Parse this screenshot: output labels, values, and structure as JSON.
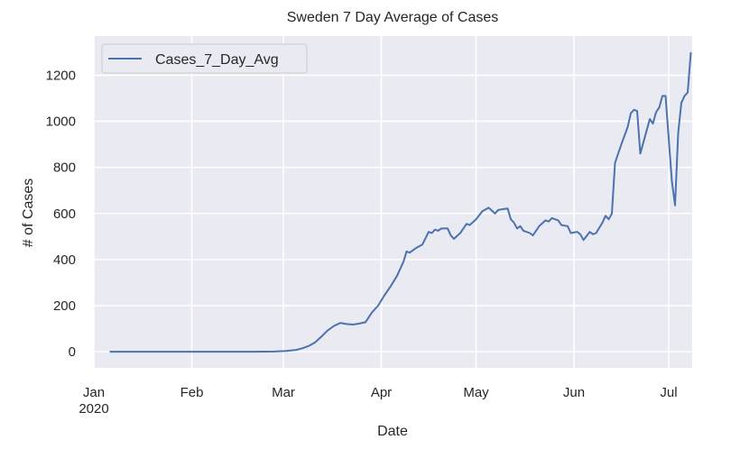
{
  "chart_data": {
    "type": "line",
    "title": "Sweden 7 Day Average of Cases",
    "xlabel": "Date",
    "ylabel": "# of Cases",
    "x_range": [
      "2020-01-01",
      "2020-07-08"
    ],
    "ylim": [
      -70,
      1370
    ],
    "grid": true,
    "legend_placement": "top-left",
    "x_ticks": [
      {
        "date": "2020-01-01",
        "label": "Jan",
        "sublabel": "2020"
      },
      {
        "date": "2020-02-01",
        "label": "Feb",
        "sublabel": ""
      },
      {
        "date": "2020-03-01",
        "label": "Mar",
        "sublabel": ""
      },
      {
        "date": "2020-04-01",
        "label": "Apr",
        "sublabel": ""
      },
      {
        "date": "2020-05-01",
        "label": "May",
        "sublabel": ""
      },
      {
        "date": "2020-06-01",
        "label": "Jun",
        "sublabel": ""
      },
      {
        "date": "2020-07-01",
        "label": "Jul",
        "sublabel": ""
      }
    ],
    "y_ticks": [
      {
        "value": 0,
        "label": "0"
      },
      {
        "value": 200,
        "label": "200"
      },
      {
        "value": 400,
        "label": "400"
      },
      {
        "value": 600,
        "label": "600"
      },
      {
        "value": 800,
        "label": "800"
      },
      {
        "value": 1000,
        "label": "1000"
      },
      {
        "value": 1200,
        "label": "1200"
      }
    ],
    "series": [
      {
        "name": "Cases_7_Day_Avg",
        "color": "#4c72b0",
        "points": [
          [
            "2020-01-06",
            0
          ],
          [
            "2020-01-20",
            0
          ],
          [
            "2020-02-05",
            0
          ],
          [
            "2020-02-20",
            0
          ],
          [
            "2020-02-27",
            1
          ],
          [
            "2020-03-02",
            3
          ],
          [
            "2020-03-05",
            8
          ],
          [
            "2020-03-07",
            15
          ],
          [
            "2020-03-09",
            25
          ],
          [
            "2020-03-11",
            40
          ],
          [
            "2020-03-13",
            65
          ],
          [
            "2020-03-15",
            92
          ],
          [
            "2020-03-17",
            112
          ],
          [
            "2020-03-19",
            125
          ],
          [
            "2020-03-21",
            120
          ],
          [
            "2020-03-23",
            118
          ],
          [
            "2020-03-25",
            122
          ],
          [
            "2020-03-27",
            128
          ],
          [
            "2020-03-29",
            170
          ],
          [
            "2020-03-31",
            200
          ],
          [
            "2020-04-02",
            245
          ],
          [
            "2020-04-04",
            285
          ],
          [
            "2020-04-06",
            330
          ],
          [
            "2020-04-08",
            390
          ],
          [
            "2020-04-09",
            435
          ],
          [
            "2020-04-10",
            430
          ],
          [
            "2020-04-12",
            450
          ],
          [
            "2020-04-14",
            465
          ],
          [
            "2020-04-16",
            520
          ],
          [
            "2020-04-17",
            515
          ],
          [
            "2020-04-18",
            530
          ],
          [
            "2020-04-19",
            525
          ],
          [
            "2020-04-20",
            535
          ],
          [
            "2020-04-22",
            535
          ],
          [
            "2020-04-23",
            505
          ],
          [
            "2020-04-24",
            490
          ],
          [
            "2020-04-26",
            515
          ],
          [
            "2020-04-28",
            555
          ],
          [
            "2020-04-29",
            550
          ],
          [
            "2020-05-01",
            575
          ],
          [
            "2020-05-03",
            610
          ],
          [
            "2020-05-05",
            625
          ],
          [
            "2020-05-07",
            600
          ],
          [
            "2020-05-08",
            615
          ],
          [
            "2020-05-10",
            620
          ],
          [
            "2020-05-11",
            622
          ],
          [
            "2020-05-12",
            575
          ],
          [
            "2020-05-13",
            560
          ],
          [
            "2020-05-14",
            535
          ],
          [
            "2020-05-15",
            545
          ],
          [
            "2020-05-16",
            525
          ],
          [
            "2020-05-18",
            515
          ],
          [
            "2020-05-19",
            505
          ],
          [
            "2020-05-21",
            545
          ],
          [
            "2020-05-23",
            570
          ],
          [
            "2020-05-24",
            565
          ],
          [
            "2020-05-25",
            580
          ],
          [
            "2020-05-27",
            570
          ],
          [
            "2020-05-28",
            550
          ],
          [
            "2020-05-30",
            545
          ],
          [
            "2020-05-31",
            515
          ],
          [
            "2020-06-02",
            520
          ],
          [
            "2020-06-03",
            510
          ],
          [
            "2020-06-04",
            485
          ],
          [
            "2020-06-06",
            520
          ],
          [
            "2020-06-07",
            510
          ],
          [
            "2020-06-08",
            515
          ],
          [
            "2020-06-10",
            560
          ],
          [
            "2020-06-11",
            590
          ],
          [
            "2020-06-12",
            575
          ],
          [
            "2020-06-13",
            600
          ],
          [
            "2020-06-14",
            820
          ],
          [
            "2020-06-16",
            900
          ],
          [
            "2020-06-18",
            975
          ],
          [
            "2020-06-19",
            1035
          ],
          [
            "2020-06-20",
            1050
          ],
          [
            "2020-06-21",
            1045
          ],
          [
            "2020-06-22",
            860
          ],
          [
            "2020-06-24",
            960
          ],
          [
            "2020-06-25",
            1010
          ],
          [
            "2020-06-26",
            990
          ],
          [
            "2020-06-27",
            1040
          ],
          [
            "2020-06-28",
            1060
          ],
          [
            "2020-06-29",
            1110
          ],
          [
            "2020-06-30",
            1110
          ],
          [
            "2020-07-02",
            740
          ],
          [
            "2020-07-03",
            635
          ],
          [
            "2020-07-04",
            950
          ],
          [
            "2020-07-05",
            1080
          ],
          [
            "2020-07-06",
            1110
          ],
          [
            "2020-07-07",
            1125
          ],
          [
            "2020-07-08",
            1300
          ]
        ]
      }
    ],
    "legend": [
      {
        "label": "Cases_7_Day_Avg",
        "color": "#4c72b0"
      }
    ]
  }
}
